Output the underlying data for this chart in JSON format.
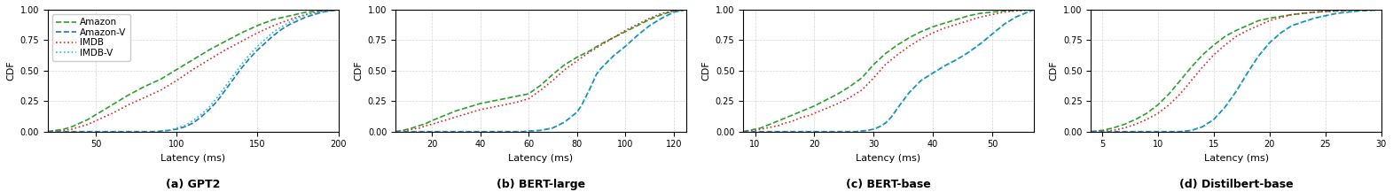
{
  "subplots": [
    {
      "title": "(a) GPT2",
      "xlabel": "Latency (ms)",
      "ylabel": "CDF",
      "xlim": [
        20,
        200
      ],
      "xticks": [
        50,
        100,
        150,
        200
      ],
      "curves": {
        "Amazon": {
          "color": "#2ca02c",
          "linestyle": "--",
          "x": [
            20,
            25,
            30,
            35,
            40,
            45,
            50,
            60,
            70,
            80,
            90,
            100,
            110,
            120,
            130,
            140,
            150,
            160,
            170,
            180,
            190,
            200
          ],
          "y": [
            0.0,
            0.01,
            0.02,
            0.04,
            0.07,
            0.1,
            0.14,
            0.22,
            0.3,
            0.37,
            0.43,
            0.51,
            0.59,
            0.67,
            0.74,
            0.81,
            0.87,
            0.92,
            0.95,
            0.98,
            0.99,
            1.0
          ]
        },
        "Amazon-V": {
          "color": "#1f77b4",
          "linestyle": "--",
          "x": [
            20,
            88,
            90,
            95,
            100,
            105,
            110,
            115,
            120,
            125,
            130,
            135,
            140,
            145,
            150,
            155,
            160,
            165,
            170,
            175,
            180,
            185,
            190,
            195,
            200
          ],
          "y": [
            0.0,
            0.0,
            0.005,
            0.01,
            0.02,
            0.04,
            0.07,
            0.12,
            0.18,
            0.25,
            0.34,
            0.43,
            0.52,
            0.6,
            0.67,
            0.73,
            0.79,
            0.84,
            0.88,
            0.91,
            0.94,
            0.96,
            0.98,
            0.99,
            1.0
          ]
        },
        "IMDB": {
          "color": "#d62728",
          "linestyle": ":",
          "x": [
            20,
            25,
            30,
            35,
            40,
            45,
            50,
            60,
            70,
            80,
            90,
            100,
            110,
            120,
            130,
            140,
            150,
            160,
            170,
            180,
            190,
            200
          ],
          "y": [
            0.0,
            0.005,
            0.01,
            0.02,
            0.04,
            0.06,
            0.09,
            0.15,
            0.22,
            0.28,
            0.34,
            0.42,
            0.51,
            0.59,
            0.67,
            0.74,
            0.81,
            0.87,
            0.92,
            0.96,
            0.99,
            1.0
          ]
        },
        "IMDB-V": {
          "color": "#17becf",
          "linestyle": ":",
          "x": [
            20,
            88,
            90,
            95,
            100,
            105,
            110,
            115,
            120,
            125,
            130,
            135,
            140,
            145,
            150,
            155,
            160,
            165,
            170,
            175,
            180,
            185,
            190,
            195,
            200
          ],
          "y": [
            0.0,
            0.0,
            0.005,
            0.01,
            0.03,
            0.05,
            0.09,
            0.14,
            0.2,
            0.28,
            0.37,
            0.46,
            0.55,
            0.63,
            0.7,
            0.76,
            0.82,
            0.86,
            0.9,
            0.93,
            0.96,
            0.97,
            0.99,
            0.99,
            1.0
          ]
        }
      }
    },
    {
      "title": "(b) BERT-large",
      "xlabel": "Latency (ms)",
      "ylabel": "CDF",
      "xlim": [
        5,
        125
      ],
      "xticks": [
        20,
        40,
        60,
        80,
        100,
        120
      ],
      "curves": {
        "Amazon": {
          "color": "#2ca02c",
          "linestyle": "--",
          "x": [
            5,
            8,
            10,
            12,
            15,
            18,
            20,
            25,
            30,
            35,
            40,
            45,
            50,
            55,
            60,
            65,
            70,
            75,
            80,
            85,
            90,
            95,
            100,
            105,
            110,
            115,
            120,
            125
          ],
          "y": [
            0.0,
            0.01,
            0.02,
            0.03,
            0.05,
            0.07,
            0.09,
            0.13,
            0.17,
            0.2,
            0.23,
            0.25,
            0.27,
            0.29,
            0.31,
            0.38,
            0.47,
            0.55,
            0.61,
            0.66,
            0.72,
            0.77,
            0.82,
            0.87,
            0.92,
            0.96,
            0.99,
            1.0
          ]
        },
        "Amazon-V": {
          "color": "#1f77b4",
          "linestyle": "--",
          "x": [
            5,
            58,
            60,
            65,
            70,
            75,
            80,
            82,
            84,
            86,
            88,
            90,
            95,
            100,
            105,
            110,
            115,
            120,
            125
          ],
          "y": [
            0.0,
            0.0,
            0.005,
            0.01,
            0.03,
            0.08,
            0.16,
            0.22,
            0.3,
            0.38,
            0.47,
            0.52,
            0.62,
            0.7,
            0.79,
            0.87,
            0.93,
            0.98,
            1.0
          ]
        },
        "IMDB": {
          "color": "#d62728",
          "linestyle": ":",
          "x": [
            5,
            8,
            10,
            12,
            15,
            18,
            20,
            25,
            30,
            35,
            40,
            45,
            50,
            55,
            60,
            65,
            70,
            75,
            80,
            85,
            90,
            95,
            100,
            105,
            110,
            115,
            120,
            125
          ],
          "y": [
            0.0,
            0.005,
            0.01,
            0.02,
            0.03,
            0.05,
            0.06,
            0.09,
            0.12,
            0.15,
            0.18,
            0.2,
            0.22,
            0.24,
            0.27,
            0.34,
            0.42,
            0.51,
            0.58,
            0.65,
            0.71,
            0.77,
            0.83,
            0.88,
            0.93,
            0.97,
            0.99,
            1.0
          ]
        },
        "IMDB-V": {
          "color": "#17becf",
          "linestyle": ":",
          "x": [
            5,
            58,
            60,
            65,
            70,
            75,
            80,
            82,
            84,
            86,
            88,
            90,
            95,
            100,
            105,
            110,
            115,
            120,
            125
          ],
          "y": [
            0.0,
            0.0,
            0.005,
            0.01,
            0.03,
            0.08,
            0.16,
            0.22,
            0.3,
            0.38,
            0.47,
            0.52,
            0.62,
            0.7,
            0.79,
            0.87,
            0.93,
            0.98,
            1.0
          ]
        }
      }
    },
    {
      "title": "(c) BERT-base",
      "xlabel": "Latency (ms)",
      "ylabel": "CDF",
      "xlim": [
        8,
        57
      ],
      "xticks": [
        10,
        20,
        30,
        40,
        50
      ],
      "curves": {
        "Amazon": {
          "color": "#2ca02c",
          "linestyle": "--",
          "x": [
            8,
            9,
            10,
            11,
            12,
            13,
            14,
            15,
            16,
            17,
            18,
            19,
            20,
            22,
            24,
            26,
            28,
            30,
            32,
            34,
            36,
            38,
            40,
            42,
            44,
            46,
            48,
            50,
            52,
            54,
            57
          ],
          "y": [
            0.0,
            0.01,
            0.02,
            0.03,
            0.05,
            0.07,
            0.09,
            0.11,
            0.13,
            0.15,
            0.17,
            0.19,
            0.21,
            0.26,
            0.31,
            0.37,
            0.44,
            0.55,
            0.64,
            0.71,
            0.77,
            0.82,
            0.86,
            0.89,
            0.92,
            0.95,
            0.97,
            0.98,
            0.99,
            0.995,
            1.0
          ]
        },
        "Amazon-V": {
          "color": "#1f77b4",
          "linestyle": "--",
          "x": [
            8,
            27,
            28,
            29,
            30,
            31,
            32,
            33,
            34,
            36,
            38,
            40,
            42,
            44,
            46,
            48,
            50,
            52,
            54,
            57
          ],
          "y": [
            0.0,
            0.0,
            0.005,
            0.01,
            0.02,
            0.04,
            0.07,
            0.12,
            0.19,
            0.32,
            0.42,
            0.48,
            0.54,
            0.59,
            0.65,
            0.72,
            0.8,
            0.88,
            0.94,
            1.0
          ]
        },
        "IMDB": {
          "color": "#d62728",
          "linestyle": ":",
          "x": [
            8,
            9,
            10,
            11,
            12,
            13,
            14,
            15,
            16,
            17,
            18,
            19,
            20,
            22,
            24,
            26,
            28,
            30,
            32,
            34,
            36,
            38,
            40,
            42,
            44,
            46,
            48,
            50,
            52,
            54,
            57
          ],
          "y": [
            0.0,
            0.005,
            0.01,
            0.02,
            0.03,
            0.04,
            0.05,
            0.07,
            0.08,
            0.1,
            0.12,
            0.13,
            0.15,
            0.19,
            0.23,
            0.28,
            0.34,
            0.44,
            0.55,
            0.63,
            0.7,
            0.76,
            0.81,
            0.85,
            0.88,
            0.91,
            0.94,
            0.96,
            0.98,
            0.99,
            1.0
          ]
        },
        "IMDB-V": {
          "color": "#17becf",
          "linestyle": ":",
          "x": [
            8,
            27,
            28,
            29,
            30,
            31,
            32,
            33,
            34,
            36,
            38,
            40,
            42,
            44,
            46,
            48,
            50,
            52,
            54,
            57
          ],
          "y": [
            0.0,
            0.0,
            0.005,
            0.01,
            0.02,
            0.04,
            0.07,
            0.12,
            0.19,
            0.32,
            0.42,
            0.48,
            0.54,
            0.59,
            0.65,
            0.72,
            0.8,
            0.88,
            0.94,
            1.0
          ]
        }
      }
    },
    {
      "title": "(d) Distilbert-base",
      "xlabel": "Latency (ms)",
      "ylabel": "CDF",
      "xlim": [
        4,
        30
      ],
      "xticks": [
        5,
        10,
        15,
        20,
        25,
        30
      ],
      "curves": {
        "Amazon": {
          "color": "#2ca02c",
          "linestyle": "--",
          "x": [
            4,
            5,
            6,
            7,
            8,
            9,
            10,
            11,
            12,
            13,
            14,
            15,
            16,
            17,
            18,
            19,
            20,
            22,
            24,
            26,
            28,
            30
          ],
          "y": [
            0.0,
            0.01,
            0.03,
            0.06,
            0.1,
            0.15,
            0.22,
            0.31,
            0.42,
            0.53,
            0.63,
            0.71,
            0.78,
            0.83,
            0.87,
            0.91,
            0.93,
            0.96,
            0.98,
            0.99,
            1.0,
            1.0
          ]
        },
        "Amazon-V": {
          "color": "#1f77b4",
          "linestyle": "--",
          "x": [
            4,
            12,
            13,
            14,
            15,
            16,
            17,
            18,
            19,
            20,
            21,
            22,
            24,
            26,
            28,
            30
          ],
          "y": [
            0.0,
            0.0,
            0.01,
            0.04,
            0.1,
            0.2,
            0.33,
            0.48,
            0.62,
            0.73,
            0.81,
            0.87,
            0.93,
            0.97,
            0.99,
            1.0
          ]
        },
        "IMDB": {
          "color": "#d62728",
          "linestyle": ":",
          "x": [
            4,
            5,
            6,
            7,
            8,
            9,
            10,
            11,
            12,
            13,
            14,
            15,
            16,
            17,
            18,
            19,
            20,
            22,
            24,
            26,
            28,
            30
          ],
          "y": [
            0.0,
            0.005,
            0.01,
            0.03,
            0.06,
            0.1,
            0.15,
            0.22,
            0.31,
            0.42,
            0.53,
            0.63,
            0.71,
            0.78,
            0.83,
            0.87,
            0.91,
            0.96,
            0.98,
            0.99,
            1.0,
            1.0
          ]
        },
        "IMDB-V": {
          "color": "#17becf",
          "linestyle": ":",
          "x": [
            4,
            12,
            13,
            14,
            15,
            16,
            17,
            18,
            19,
            20,
            21,
            22,
            24,
            26,
            28,
            30
          ],
          "y": [
            0.0,
            0.0,
            0.01,
            0.04,
            0.1,
            0.2,
            0.33,
            0.48,
            0.62,
            0.73,
            0.81,
            0.87,
            0.93,
            0.97,
            0.99,
            1.0
          ]
        }
      }
    }
  ],
  "legend_order": [
    "Amazon",
    "Amazon-V",
    "IMDB",
    "IMDB-V"
  ],
  "ylim": [
    0.0,
    1.0
  ],
  "yticks": [
    0.0,
    0.25,
    0.5,
    0.75,
    1.0
  ],
  "grid": true,
  "title_fontsize": 9,
  "label_fontsize": 8,
  "tick_fontsize": 7,
  "legend_fontsize": 7.5,
  "linewidth": 1.2
}
